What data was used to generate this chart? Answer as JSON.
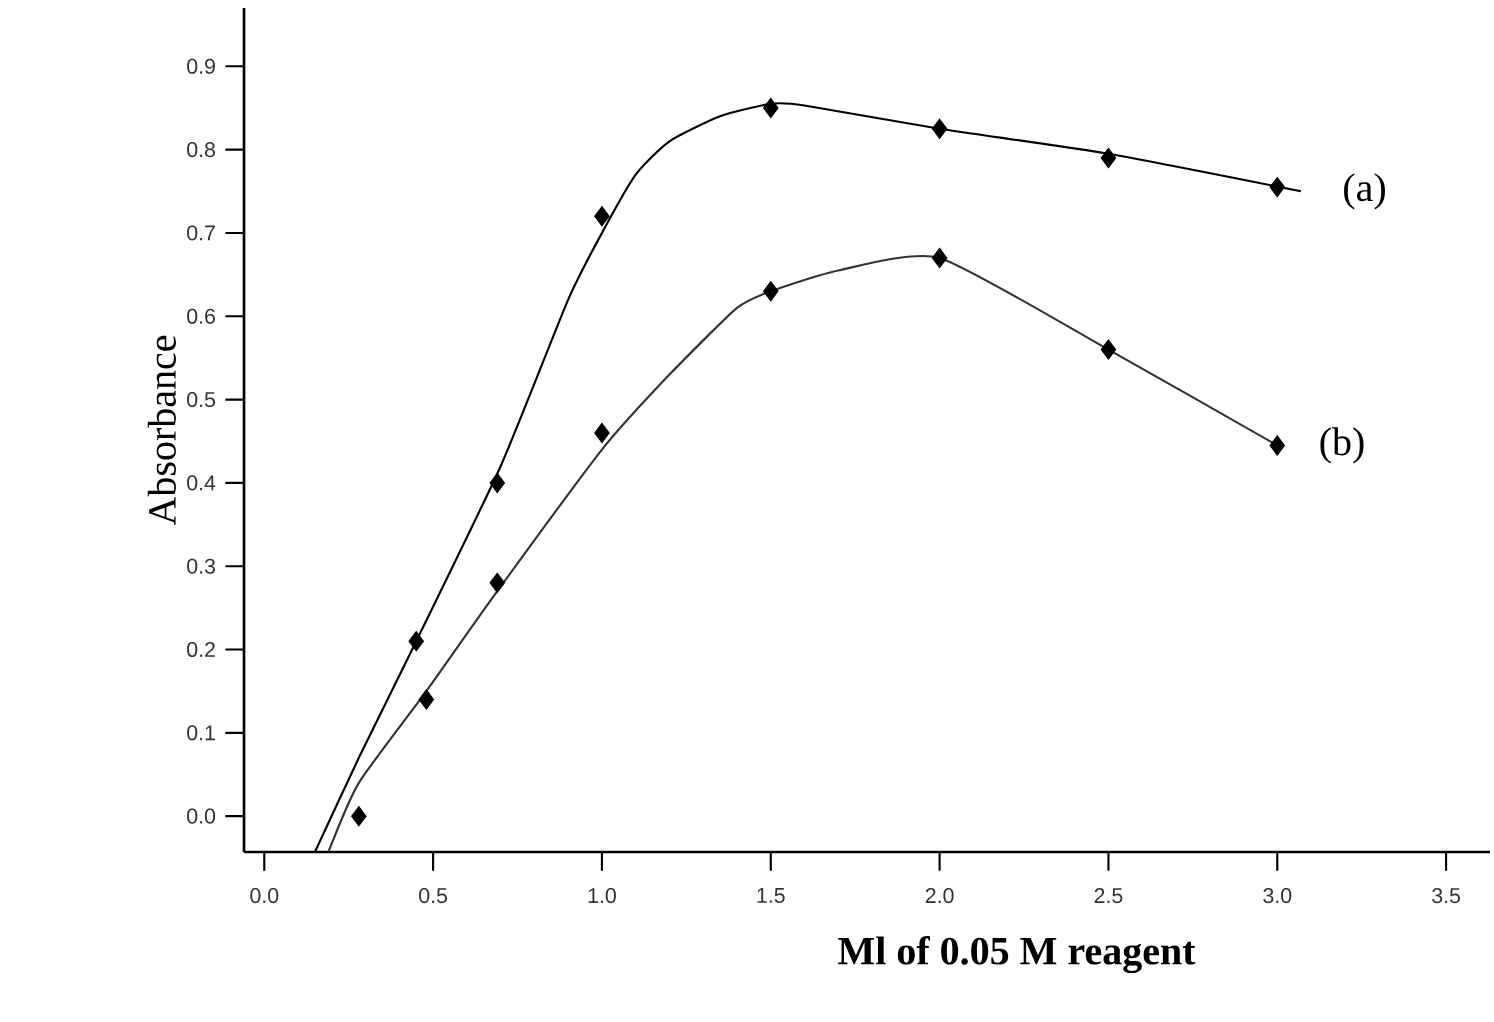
{
  "chart_data": {
    "type": "scatter",
    "xlabel": "**Ml of 0.05 M reagent**",
    "ylabel": "Absorbance",
    "xlim": [
      -0.06,
      3.63
    ],
    "ylim": [
      -0.043,
      0.97
    ],
    "xticks": [
      {
        "value": 0,
        "label": "0.0"
      },
      0.5,
      {
        "value": 1,
        "label": "1.0"
      },
      1.5,
      {
        "value": 2,
        "label": "2.0"
      },
      2.5,
      {
        "value": 3,
        "label": "3.0"
      },
      3.5
    ],
    "yticks": [
      {
        "value": 0,
        "label": "0.0"
      },
      0.1,
      0.2,
      0.3,
      0.4,
      0.5,
      0.6,
      0.7,
      0.8,
      0.9
    ],
    "grid": false,
    "series": [
      {
        "name": "(a)",
        "type": "line",
        "marker": "none",
        "color": "#000000",
        "x": [
          0.15,
          0.28,
          0.45,
          0.7,
          0.9,
          1.0,
          1.1,
          1.2,
          1.35,
          1.5,
          1.6,
          2.0,
          2.5,
          3.07
        ],
        "values": [
          -0.043,
          0.07,
          0.21,
          0.42,
          0.62,
          0.7,
          0.77,
          0.81,
          0.84,
          0.855,
          0.853,
          0.825,
          0.795,
          0.75
        ]
      },
      {
        "name": "(b)",
        "type": "line",
        "marker": "none",
        "color": "#333333",
        "x": [
          0.19,
          0.28,
          0.48,
          0.69,
          1.0,
          1.2,
          1.4,
          1.5,
          1.7,
          2.0,
          2.5,
          3.0
        ],
        "values": [
          -0.043,
          0.04,
          0.15,
          0.27,
          0.44,
          0.53,
          0.61,
          0.63,
          0.655,
          0.67,
          0.56,
          0.445
        ]
      },
      {
        "marker": "diamond",
        "color": "#000000",
        "x": [
          0.45,
          0.69,
          1.0,
          1.5,
          2.0,
          2.5,
          3.0
        ],
        "values": [
          0.21,
          0.4,
          0.72,
          0.85,
          0.825,
          0.79,
          0.755
        ]
      },
      {
        "marker": "diamond",
        "color": "#000000",
        "x": [
          0.28,
          0.48,
          0.69,
          1.0,
          1.5,
          2.0,
          2.5,
          3.0
        ],
        "values": [
          0.0,
          0.14,
          0.28,
          0.46,
          0.63,
          0.67,
          0.56,
          0.445
        ]
      }
    ]
  }
}
